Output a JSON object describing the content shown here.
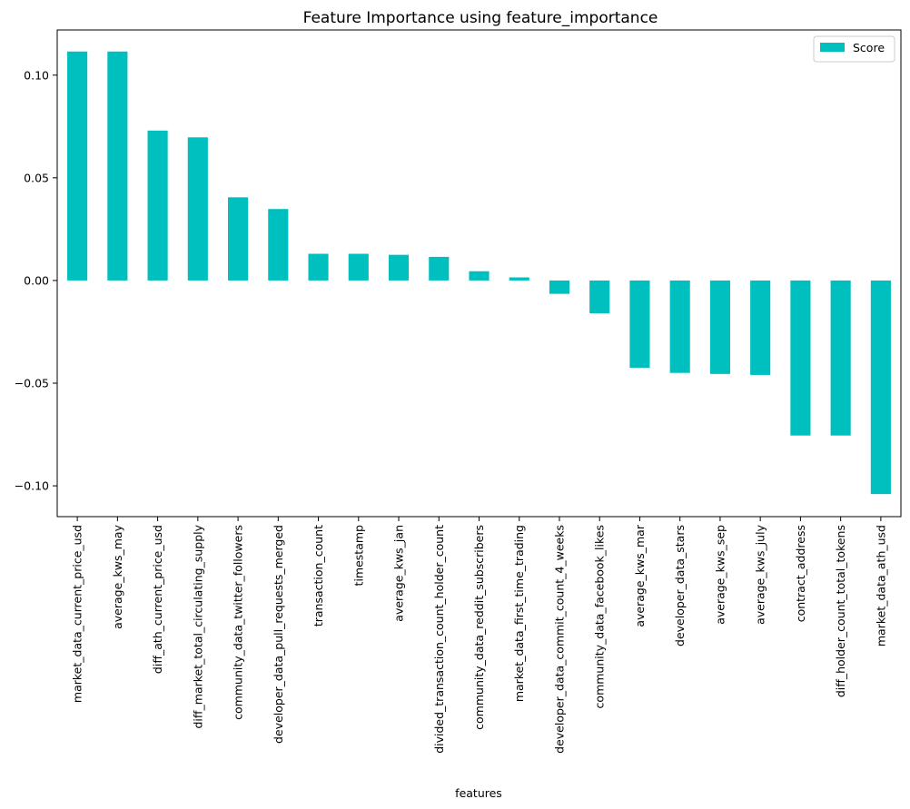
{
  "chart_data": {
    "type": "bar",
    "title": "Feature Importance using feature_importance",
    "xlabel": "features",
    "ylabel": "",
    "ylim": [
      -0.115,
      0.122
    ],
    "yticks": [
      -0.1,
      -0.05,
      0.0,
      0.05,
      0.1
    ],
    "ytick_labels": [
      "−0.10",
      "−0.05",
      "0.00",
      "0.05",
      "0.10"
    ],
    "legend_position": "top-right",
    "grid": false,
    "categories": [
      "market_data_current_price_usd",
      "average_kws_may",
      "diff_ath_current_price_usd",
      "diff_market_total_circulating_supply",
      "community_data_twitter_followers",
      "developer_data_pull_requests_merged",
      "transaction_count",
      "timestamp",
      "average_kws_jan",
      "divided_transaction_count_holder_count",
      "community_data_reddit_subscribers",
      "market_data_first_time_trading",
      "developer_data_commit_count_4_weeks",
      "community_data_facebook_likes",
      "average_kws_mar",
      "developer_data_stars",
      "average_kws_sep",
      "average_kws_july",
      "contract_address",
      "diff_holder_count_total_tokens",
      "market_data_ath_usd"
    ],
    "series": [
      {
        "name": "Score",
        "color": "#00bfbf",
        "values": [
          0.1115,
          0.1115,
          0.073,
          0.0697,
          0.0405,
          0.0348,
          0.013,
          0.013,
          0.0125,
          0.0115,
          0.0045,
          0.0015,
          -0.0065,
          -0.016,
          -0.0425,
          -0.045,
          -0.0455,
          -0.046,
          -0.0755,
          -0.0755,
          -0.104
        ]
      }
    ]
  }
}
